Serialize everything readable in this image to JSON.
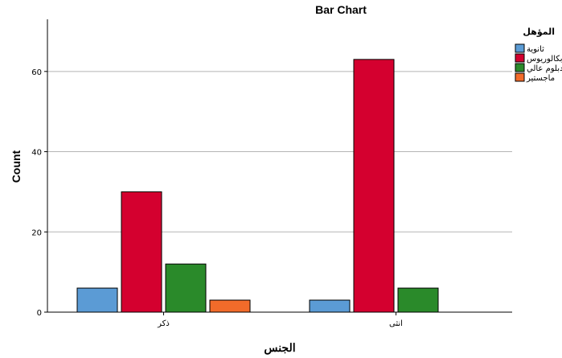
{
  "chart_data": {
    "type": "bar",
    "title": "Bar Chart",
    "xlabel": "الجنس",
    "ylabel": "Count",
    "categories": [
      "ذكر",
      "انثى"
    ],
    "series": [
      {
        "name": "ثانوية",
        "color": "#5b9bd5",
        "values": [
          6,
          3
        ]
      },
      {
        "name": "بكالوريوس",
        "color": "#d4002f",
        "values": [
          30,
          63
        ]
      },
      {
        "name": "دبلوم عالي",
        "color": "#2a8a2a",
        "values": [
          12,
          6
        ]
      },
      {
        "name": "ماجستير",
        "color": "#f26b2a",
        "values": [
          3,
          0
        ]
      }
    ],
    "legend_title": "المؤهل",
    "legend_position": "top-right",
    "ylim": [
      0,
      73
    ],
    "yticks": [
      0,
      20,
      40,
      60
    ],
    "grid": true
  }
}
